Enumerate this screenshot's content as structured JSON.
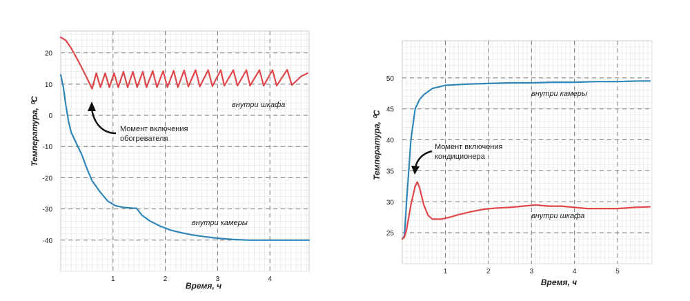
{
  "chart_data": [
    {
      "type": "line",
      "xlabel": "Время, ч",
      "ylabel": "Температура, ⁰C",
      "xlim": [
        0,
        4.75
      ],
      "ylim": [
        -50,
        27
      ],
      "x_ticks": [
        1,
        2,
        3,
        4
      ],
      "y_ticks": [
        20,
        10,
        0,
        -10,
        -20,
        -30,
        -40
      ],
      "grid": true,
      "series": [
        {
          "name": "внутри шкафа",
          "color": "#e0474c",
          "points": [
            [
              0,
              25
            ],
            [
              0.1,
              24
            ],
            [
              0.2,
              21.5
            ],
            [
              0.35,
              17
            ],
            [
              0.5,
              12
            ],
            [
              0.6,
              8.5
            ],
            [
              0.68,
              13.5
            ],
            [
              0.76,
              9
            ],
            [
              0.85,
              13.5
            ],
            [
              0.93,
              9
            ],
            [
              1.02,
              13.5
            ],
            [
              1.1,
              9
            ],
            [
              1.2,
              14
            ],
            [
              1.28,
              9
            ],
            [
              1.38,
              14
            ],
            [
              1.46,
              9
            ],
            [
              1.57,
              14
            ],
            [
              1.64,
              9
            ],
            [
              1.76,
              14.2
            ],
            [
              1.84,
              9
            ],
            [
              1.96,
              14.2
            ],
            [
              2.04,
              9
            ],
            [
              2.16,
              14.3
            ],
            [
              2.24,
              9
            ],
            [
              2.36,
              14.4
            ],
            [
              2.44,
              9.2
            ],
            [
              2.58,
              14.5
            ],
            [
              2.66,
              9.2
            ],
            [
              2.82,
              14.5
            ],
            [
              2.9,
              9.3
            ],
            [
              3.06,
              14.5
            ],
            [
              3.13,
              9.5
            ],
            [
              3.3,
              14.5
            ],
            [
              3.38,
              9.5
            ],
            [
              3.55,
              14.5
            ],
            [
              3.62,
              9.5
            ],
            [
              3.8,
              14.5
            ],
            [
              3.88,
              9.5
            ],
            [
              4.05,
              14.5
            ],
            [
              4.13,
              9.5
            ],
            [
              4.33,
              14.6
            ],
            [
              4.42,
              9.7
            ],
            [
              4.6,
              12.5
            ],
            [
              4.72,
              13.5
            ]
          ]
        },
        {
          "name": "внутри камеры",
          "color": "#2f86b8",
          "points": [
            [
              0,
              13
            ],
            [
              0.05,
              9
            ],
            [
              0.1,
              3
            ],
            [
              0.15,
              -2
            ],
            [
              0.2,
              -5.5
            ],
            [
              0.3,
              -9
            ],
            [
              0.4,
              -12.5
            ],
            [
              0.5,
              -17
            ],
            [
              0.6,
              -21
            ],
            [
              0.75,
              -24.5
            ],
            [
              0.9,
              -27.5
            ],
            [
              1.05,
              -29
            ],
            [
              1.2,
              -29.5
            ],
            [
              1.35,
              -29.7
            ],
            [
              1.45,
              -29.8
            ],
            [
              1.55,
              -32
            ],
            [
              1.7,
              -33.8
            ],
            [
              1.9,
              -35.5
            ],
            [
              2.1,
              -36.8
            ],
            [
              2.3,
              -37.6
            ],
            [
              2.5,
              -38.3
            ],
            [
              2.75,
              -38.9
            ],
            [
              3.0,
              -39.4
            ],
            [
              3.3,
              -39.8
            ],
            [
              3.6,
              -40
            ],
            [
              4.0,
              -40
            ],
            [
              4.75,
              -40
            ]
          ]
        }
      ],
      "series_labels": [
        "внутри шкафа",
        "внутри камеры"
      ],
      "annotations": [
        "Момент включения обогревателя"
      ]
    },
    {
      "type": "line",
      "xlabel": "Время, ч",
      "ylabel": "Температура, ⁰C",
      "xlim": [
        0,
        5.8
      ],
      "ylim": [
        20,
        56
      ],
      "x_ticks": [
        1,
        2,
        3,
        4,
        5
      ],
      "y_ticks": [
        25,
        30,
        35,
        40,
        45,
        50
      ],
      "grid": true,
      "series": [
        {
          "name": "внутри камеры",
          "color": "#2f86b8",
          "points": [
            [
              0,
              24
            ],
            [
              0.05,
              24.5
            ],
            [
              0.1,
              30
            ],
            [
              0.2,
              40
            ],
            [
              0.3,
              45
            ],
            [
              0.4,
              46.5
            ],
            [
              0.5,
              47.3
            ],
            [
              0.7,
              48.3
            ],
            [
              1.0,
              48.8
            ],
            [
              1.5,
              49
            ],
            [
              2.0,
              49.1
            ],
            [
              2.5,
              49.2
            ],
            [
              3.0,
              49.2
            ],
            [
              3.5,
              49.3
            ],
            [
              4.0,
              49.3
            ],
            [
              4.5,
              49.4
            ],
            [
              5.0,
              49.4
            ],
            [
              5.5,
              49.5
            ],
            [
              5.75,
              49.5
            ]
          ]
        },
        {
          "name": "внутри шкафа",
          "color": "#e0474c",
          "points": [
            [
              0,
              24
            ],
            [
              0.05,
              24.3
            ],
            [
              0.1,
              25.5
            ],
            [
              0.2,
              29.5
            ],
            [
              0.3,
              32.5
            ],
            [
              0.35,
              33.2
            ],
            [
              0.4,
              32.3
            ],
            [
              0.5,
              29.5
            ],
            [
              0.6,
              27.8
            ],
            [
              0.7,
              27.2
            ],
            [
              0.9,
              27.2
            ],
            [
              1.1,
              27.5
            ],
            [
              1.3,
              27.9
            ],
            [
              1.6,
              28.4
            ],
            [
              1.9,
              28.8
            ],
            [
              2.2,
              29
            ],
            [
              2.5,
              29.1
            ],
            [
              2.8,
              29.3
            ],
            [
              3.1,
              29.5
            ],
            [
              3.4,
              29.3
            ],
            [
              3.7,
              29.3
            ],
            [
              4.0,
              29.1
            ],
            [
              4.3,
              28.9
            ],
            [
              4.6,
              28.9
            ],
            [
              5.0,
              28.9
            ],
            [
              5.4,
              29.1
            ],
            [
              5.75,
              29.2
            ]
          ]
        }
      ],
      "series_labels": [
        "внутри камеры",
        "внутри шкафа"
      ],
      "annotations": [
        "Момент включения кондиционера"
      ]
    }
  ],
  "left": {
    "annotation_lines": [
      "Момент включения",
      "обогревателя"
    ]
  },
  "right": {
    "annotation_lines": [
      "Момент включения",
      "кондиционера"
    ]
  }
}
